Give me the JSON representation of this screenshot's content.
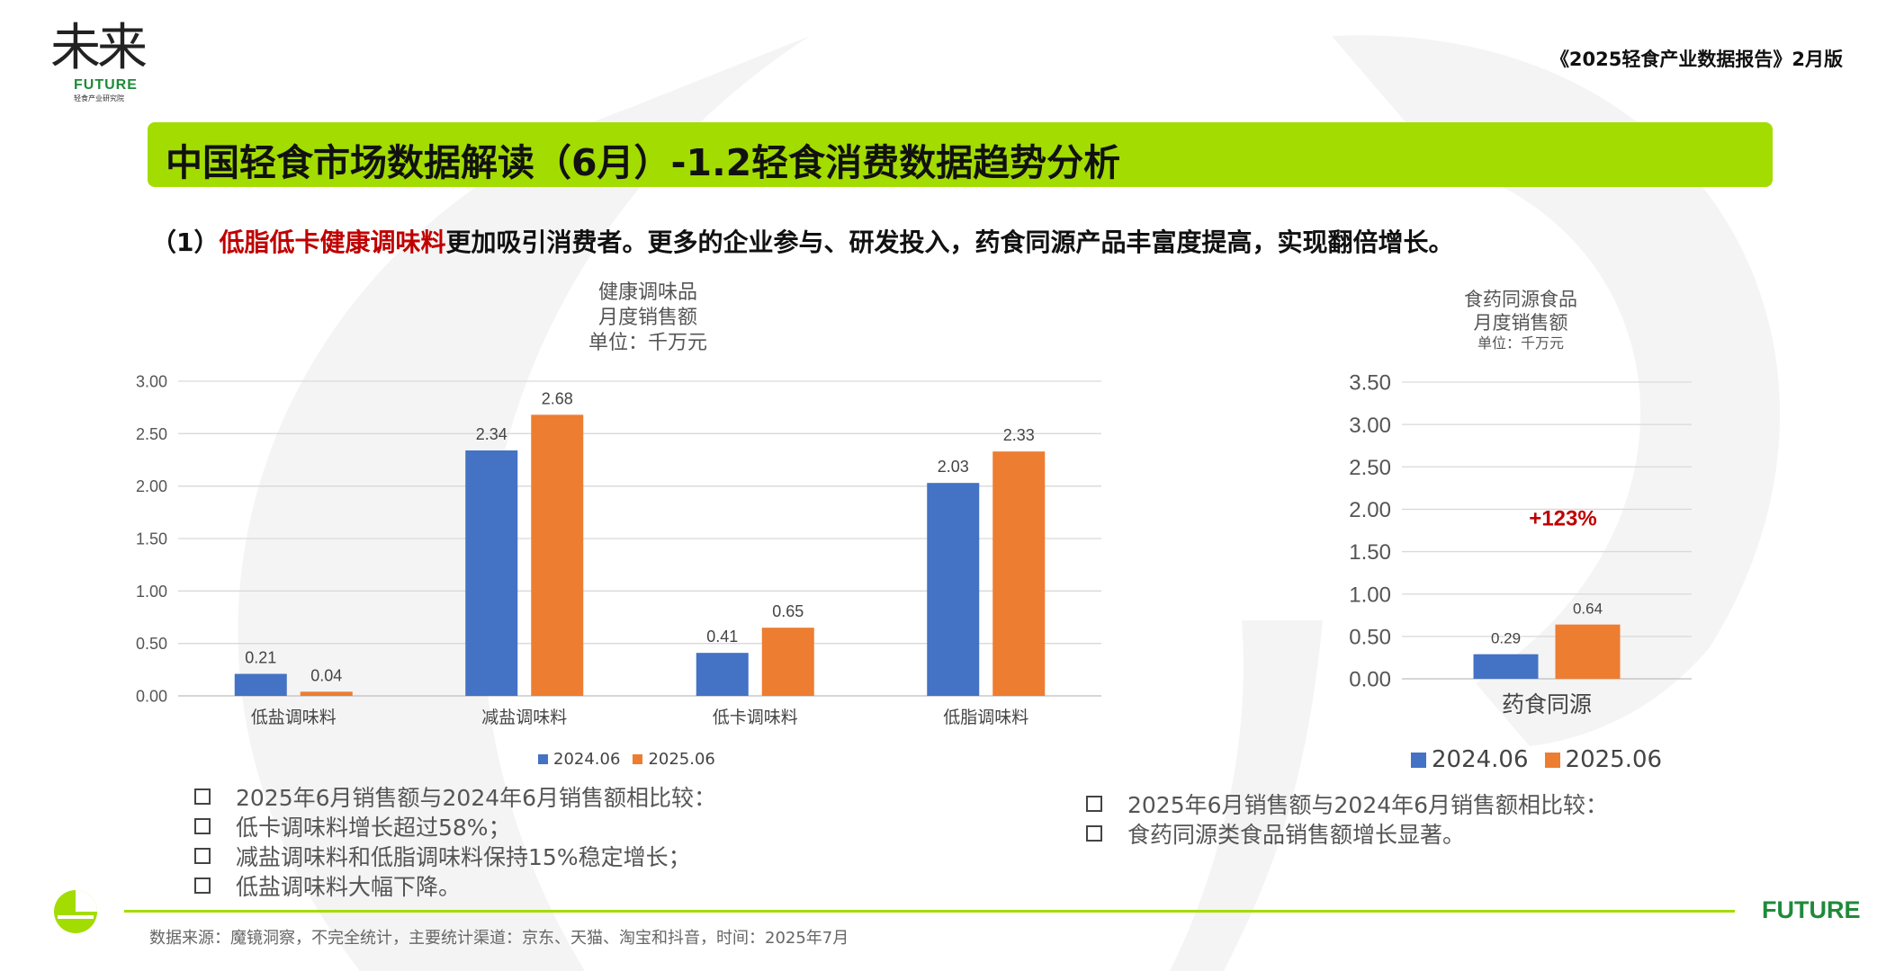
{
  "header": {
    "logo_cn": "未来",
    "logo_en": "FUTURE",
    "logo_sub": "轻食产业研究院",
    "report_title": "《2025轻食产业数据报告》2月版"
  },
  "banner": {
    "title": "中国轻食市场数据解读（6月）-1.2轻食消费数据趋势分析"
  },
  "subtitle": {
    "prefix": "（1）",
    "highlight": "低脂低卡健康调味料",
    "rest": "更加吸引消费者。更多的企业参与、研发投入，药食同源产品丰富度提高，实现翻倍增长。"
  },
  "colors": {
    "series_2024": "#4472c4",
    "series_2025": "#ed7d31",
    "accent_green": "#a3dc00",
    "highlight_red": "#c00000"
  },
  "chart_left_title": [
    "健康调味品",
    "月度销售额",
    "单位：千万元"
  ],
  "chart_right_title": [
    "食药同源食品",
    "月度销售额",
    "单位：千万元"
  ],
  "chart_data": [
    {
      "type": "bar",
      "title": "健康调味品 月度销售额",
      "unit": "单位：千万元",
      "categories": [
        "低盐调味料",
        "减盐调味料",
        "低卡调味料",
        "低脂调味料"
      ],
      "series": [
        {
          "name": "2024.06",
          "values": [
            0.21,
            2.34,
            0.41,
            2.03
          ]
        },
        {
          "name": "2025.06",
          "values": [
            0.04,
            2.68,
            0.65,
            2.33
          ]
        }
      ],
      "ylim": [
        0,
        3
      ],
      "yticks": [
        "0.00",
        "0.50",
        "1.00",
        "1.50",
        "2.00",
        "2.50",
        "3.00"
      ],
      "grid": true,
      "legend": "bottom"
    },
    {
      "type": "bar",
      "title": "食药同源食品 月度销售额",
      "unit": "单位：千万元",
      "categories": [
        "药食同源"
      ],
      "series": [
        {
          "name": "2024.06",
          "values": [
            0.29
          ]
        },
        {
          "name": "2025.06",
          "values": [
            0.64
          ]
        }
      ],
      "ylim": [
        0,
        3.5
      ],
      "yticks": [
        "0.00",
        "0.50",
        "1.00",
        "1.50",
        "2.00",
        "2.50",
        "3.00",
        "3.50"
      ],
      "annotation": "+123%",
      "grid": true,
      "legend": "bottom"
    }
  ],
  "notes_left": [
    "2025年6月销售额与2024年6月销售额相比较：",
    "低卡调味料增长超过58%；",
    "减盐调味料和低脂调味料保持15%稳定增长；",
    "低盐调味料大幅下降。"
  ],
  "notes_right": [
    "2025年6月销售额与2024年6月销售额相比较：",
    "食药同源类食品销售额增长显著。"
  ],
  "footer": {
    "source": "数据来源：魔镜洞察，不完全统计，主要统计渠道：京东、天猫、淘宝和抖音，时间：2025年7月",
    "brand": "FUTURE"
  }
}
